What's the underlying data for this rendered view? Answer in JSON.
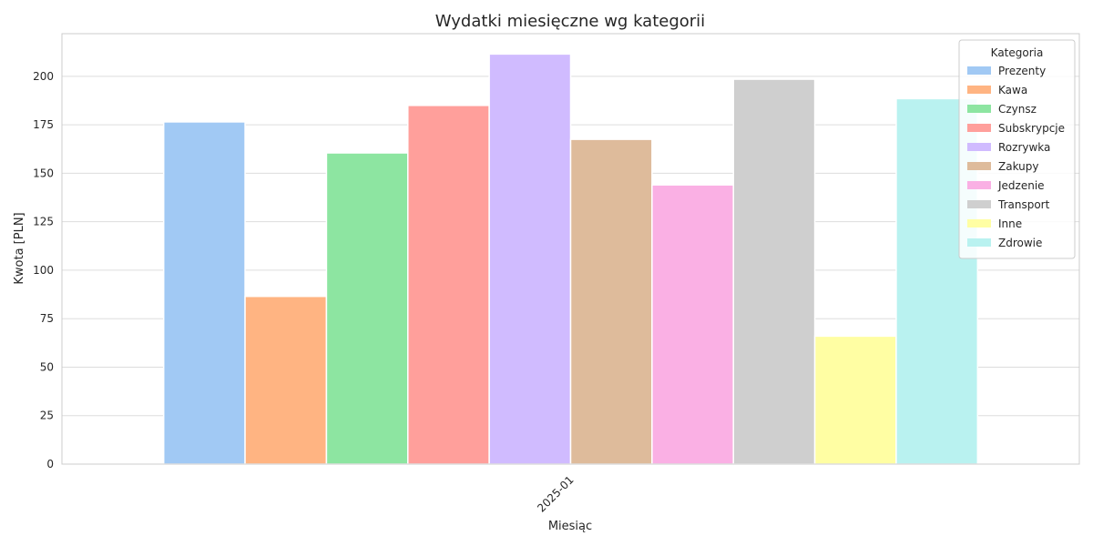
{
  "chart_data": {
    "type": "bar",
    "title": "Wydatki miesięczne wg kategorii",
    "xlabel": "Miesiąc",
    "ylabel": "Kwota [PLN]",
    "categories": [
      "2025-01"
    ],
    "ylim": [
      0,
      222
    ],
    "yticks": [
      0,
      25,
      50,
      75,
      100,
      125,
      150,
      175,
      200
    ],
    "grid": true,
    "legend": {
      "title": "Kategoria",
      "position": "top-right"
    },
    "series": [
      {
        "name": "Prezenty",
        "values": [
          176.5
        ],
        "color": "#a1c9f4"
      },
      {
        "name": "Kawa",
        "values": [
          86.5
        ],
        "color": "#ffb482"
      },
      {
        "name": "Czynsz",
        "values": [
          160.5
        ],
        "color": "#8de5a1"
      },
      {
        "name": "Subskrypcje",
        "values": [
          185
        ],
        "color": "#ff9f9b"
      },
      {
        "name": "Rozrywka",
        "values": [
          211.5
        ],
        "color": "#d0bbff"
      },
      {
        "name": "Zakupy",
        "values": [
          167.5
        ],
        "color": "#debb9b"
      },
      {
        "name": "Jedzenie",
        "values": [
          144
        ],
        "color": "#fab0e4"
      },
      {
        "name": "Transport",
        "values": [
          198.5
        ],
        "color": "#cfcfcf"
      },
      {
        "name": "Inne",
        "values": [
          66
        ],
        "color": "#fffea3"
      },
      {
        "name": "Zdrowie",
        "values": [
          188.5
        ],
        "color": "#b9f2f0"
      }
    ]
  }
}
